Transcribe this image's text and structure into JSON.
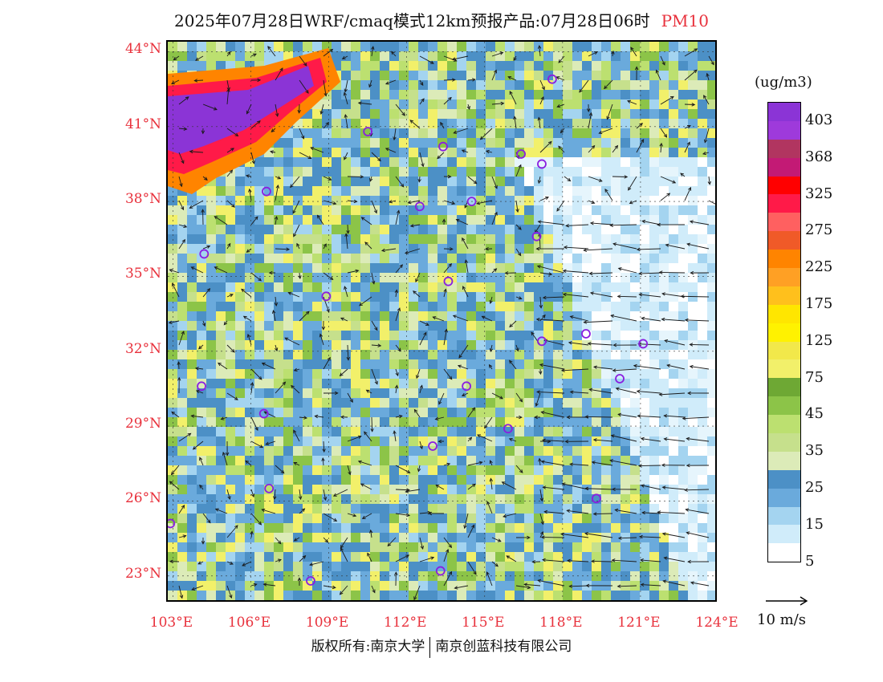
{
  "header": {
    "title": "2025年07月28日WRF/cmaq模式12km预报产品:07月28日06时",
    "variable": "PM10"
  },
  "map": {
    "lat_ticks": [
      "44°N",
      "41°N",
      "38°N",
      "35°N",
      "32°N",
      "29°N",
      "26°N",
      "23°N"
    ],
    "lon_ticks": [
      "103°E",
      "106°E",
      "109°E",
      "112°E",
      "115°E",
      "118°E",
      "121°E",
      "124°E"
    ],
    "extent": {
      "lon_min": 102.8,
      "lon_max": 124.0,
      "lat_min": 21.9,
      "lat_max": 44.4
    },
    "city_markers": [
      {
        "lon": 117.6,
        "lat": 42.9
      },
      {
        "lon": 110.5,
        "lat": 40.8
      },
      {
        "lon": 106.6,
        "lat": 38.4
      },
      {
        "lon": 113.4,
        "lat": 40.2
      },
      {
        "lon": 114.5,
        "lat": 38.0
      },
      {
        "lon": 116.4,
        "lat": 39.9
      },
      {
        "lon": 117.2,
        "lat": 39.5
      },
      {
        "lon": 112.5,
        "lat": 37.8
      },
      {
        "lon": 117.0,
        "lat": 36.6
      },
      {
        "lon": 104.2,
        "lat": 35.9
      },
      {
        "lon": 113.6,
        "lat": 34.8
      },
      {
        "lon": 108.9,
        "lat": 34.2
      },
      {
        "lon": 117.2,
        "lat": 32.4
      },
      {
        "lon": 118.9,
        "lat": 32.7
      },
      {
        "lon": 121.1,
        "lat": 32.3
      },
      {
        "lon": 104.1,
        "lat": 30.6
      },
      {
        "lon": 114.3,
        "lat": 30.6
      },
      {
        "lon": 120.2,
        "lat": 30.9
      },
      {
        "lon": 106.5,
        "lat": 29.5
      },
      {
        "lon": 115.9,
        "lat": 28.9
      },
      {
        "lon": 113.0,
        "lat": 28.2
      },
      {
        "lon": 119.3,
        "lat": 26.1
      },
      {
        "lon": 106.7,
        "lat": 26.5
      },
      {
        "lon": 102.9,
        "lat": 25.1
      },
      {
        "lon": 108.3,
        "lat": 22.8
      },
      {
        "lon": 113.3,
        "lat": 23.2
      }
    ]
  },
  "legend": {
    "unit": "(ug/m3)",
    "labels": [
      "403",
      "368",
      "325",
      "275",
      "225",
      "175",
      "125",
      "75",
      "45",
      "35",
      "25",
      "15",
      "5"
    ],
    "colors": [
      "#8b34d6",
      "#9e3adb",
      "#b13560",
      "#c31a75",
      "#ff0000",
      "#ff1a48",
      "#ff6060",
      "#f05a28",
      "#ff8400",
      "#ffa024",
      "#ffc01c",
      "#ffe600",
      "#fff200",
      "#f2e84a",
      "#f2f06a",
      "#6ea834",
      "#8cc448",
      "#bce070",
      "#c6e08c",
      "#dcebb8",
      "#4c90c6",
      "#6aaadc",
      "#a4d4f0",
      "#d0ecfa",
      "#ffffff"
    ],
    "wind_ref": "10 m/s"
  },
  "footer": {
    "copyright_left": "版权所有:南京大学",
    "copyright_right": "南京创蓝科技有限公司"
  }
}
